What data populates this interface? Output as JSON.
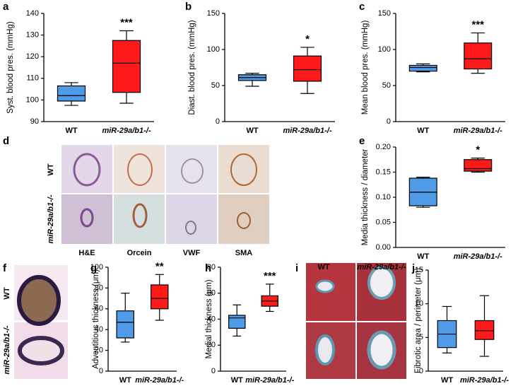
{
  "chart_data": [
    {
      "panel": "a",
      "type": "box",
      "ylabel": "Syst. blood pres. (mmHg)",
      "categories": [
        "WT",
        "miR-29a/b1-/-"
      ],
      "boxes": [
        {
          "color": "#4f9be8",
          "whislo": 97.5,
          "q1": 99.5,
          "med": 102,
          "q3": 106.5,
          "whishi": 108
        },
        {
          "color": "#ff1a1a",
          "whislo": 98.5,
          "q1": 103.5,
          "med": 117,
          "q3": 127.5,
          "whishi": 132
        }
      ],
      "ylim": [
        90,
        140
      ],
      "yticks": [
        90,
        100,
        110,
        120,
        130,
        140
      ],
      "significance": "***"
    },
    {
      "panel": "b",
      "type": "box",
      "ylabel": "Diast. blood pres. (mmHg)",
      "categories": [
        "WT",
        "miR-29a/b1-/-"
      ],
      "boxes": [
        {
          "color": "#4f9be8",
          "whislo": 49,
          "q1": 57,
          "med": 61,
          "q3": 65,
          "whishi": 67
        },
        {
          "color": "#ff1a1a",
          "whislo": 39,
          "q1": 56,
          "med": 72,
          "q3": 91,
          "whishi": 103
        }
      ],
      "ylim": [
        0,
        150
      ],
      "yticks": [
        0,
        50,
        100,
        150
      ],
      "significance": "*"
    },
    {
      "panel": "c",
      "type": "box",
      "ylabel": "Mean blood pres. (mmHg)",
      "categories": [
        "WT",
        "miR-29a/b1-/-"
      ],
      "boxes": [
        {
          "color": "#4f9be8",
          "whislo": 69,
          "q1": 70,
          "med": 75,
          "q3": 78,
          "whishi": 80
        },
        {
          "color": "#ff1a1a",
          "whislo": 67,
          "q1": 73,
          "med": 87,
          "q3": 109,
          "whishi": 123
        }
      ],
      "ylim": [
        0,
        150
      ],
      "yticks": [
        0,
        50,
        100,
        150
      ],
      "significance": "***"
    },
    {
      "panel": "e",
      "type": "box",
      "ylabel": "Media thickness / diameter",
      "categories": [
        "WT",
        "miR-29a/b1-/-"
      ],
      "boxes": [
        {
          "color": "#4f9be8",
          "whislo": 0.08,
          "q1": 0.083,
          "med": 0.11,
          "q3": 0.138,
          "whishi": 0.14
        },
        {
          "color": "#ff1a1a",
          "whislo": 0.15,
          "q1": 0.152,
          "med": 0.157,
          "q3": 0.175,
          "whishi": 0.178
        }
      ],
      "ylim": [
        0,
        0.2
      ],
      "yticks": [
        {
          "value": 0,
          "label": "0.00"
        },
        {
          "value": 0.05,
          "label": "0.05"
        },
        {
          "value": 0.1,
          "label": "0.10"
        },
        {
          "value": 0.15,
          "label": "0.15"
        },
        {
          "value": 0.2,
          "label": "0.20"
        }
      ],
      "significance": "*"
    },
    {
      "panel": "g",
      "type": "box",
      "ylabel": "Adventitious thickness (μm)",
      "categories": [
        "WT",
        "miR-29a/b1-/-"
      ],
      "boxes": [
        {
          "color": "#4f9be8",
          "whislo": 28,
          "q1": 32,
          "med": 47,
          "q3": 58,
          "whishi": 75
        },
        {
          "color": "#ff1a1a",
          "whislo": 49,
          "q1": 60,
          "med": 70,
          "q3": 83,
          "whishi": 93
        }
      ],
      "ylim": [
        0,
        100
      ],
      "yticks": [
        0,
        20,
        40,
        60,
        80,
        100
      ],
      "significance": "**"
    },
    {
      "panel": "h",
      "type": "box",
      "ylabel": "Medial thickness (μm)",
      "categories": [
        "WT",
        "miR-29a/b1-/-"
      ],
      "boxes": [
        {
          "color": "#4f9be8",
          "whislo": 27,
          "q1": 33,
          "med": 41,
          "q3": 43,
          "whishi": 51
        },
        {
          "color": "#ff1a1a",
          "whislo": 46,
          "q1": 50,
          "med": 54,
          "q3": 58,
          "whishi": 67
        }
      ],
      "ylim": [
        0,
        80
      ],
      "yticks": [
        0,
        20,
        40,
        60,
        80
      ],
      "significance": "***"
    },
    {
      "panel": "j",
      "type": "box",
      "ylabel": "Fibrotic area / perimeter (μm)",
      "categories": [
        "WT",
        "miR-29a/b1-/-"
      ],
      "boxes": [
        {
          "color": "#4f9be8",
          "whislo": 2.7,
          "q1": 3.5,
          "med": 5.5,
          "q3": 7.5,
          "whishi": 9.6
        },
        {
          "color": "#ff1a1a",
          "whislo": 2.2,
          "q1": 4.7,
          "med": 6,
          "q3": 7.5,
          "whishi": 11.2
        }
      ],
      "ylim": [
        0,
        15
      ],
      "yticks": [
        0,
        5,
        10,
        15
      ]
    }
  ],
  "image_panels": {
    "d": {
      "panel": "d",
      "rows": [
        "WT",
        "miR-29a/b1-/-"
      ],
      "columns": [
        "H&E",
        "Orcein",
        "VWF",
        "SMA"
      ]
    },
    "f": {
      "panel": "f",
      "rows": [
        "WT",
        "miR-29a/b1-/-"
      ]
    },
    "i": {
      "panel": "i",
      "columns": [
        "WT",
        "miR-29a/b1-/-"
      ]
    }
  }
}
